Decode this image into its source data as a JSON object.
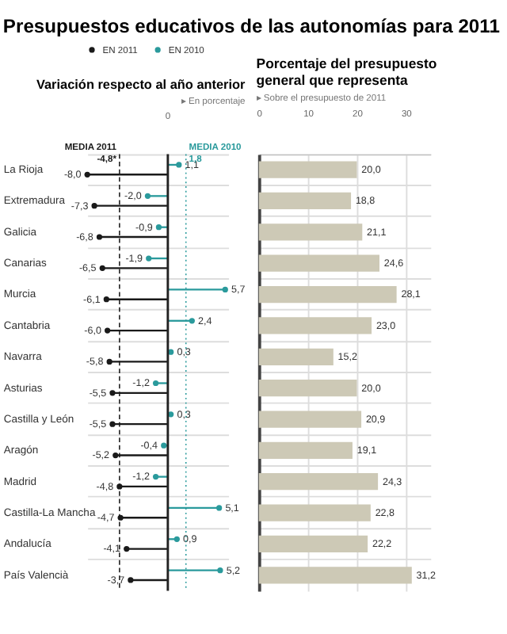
{
  "chart_data": [
    {
      "type": "lollipop",
      "orientation": "horizontal",
      "title": "Presupuestos educativos de las autonomías para 2011",
      "subtitle": "Variación  respecto al año anterior",
      "annotations": [
        "▸ En porcentaje",
        "0"
      ],
      "categories": [
        "La Rioja",
        "Extremadura",
        "Galicia",
        "Canarias",
        "Murcia",
        "Cantabria",
        "Navarra",
        "Asturias",
        "Castilla y León",
        "Aragón",
        "Madrid",
        "Castilla-La Mancha",
        "Andalucía",
        "País Valencià"
      ],
      "series": [
        {
          "name": "EN 2011",
          "color": "#1a1a1a",
          "values": [
            -8.0,
            -7.3,
            -6.8,
            -6.5,
            -6.1,
            -6.0,
            -5.8,
            -5.5,
            -5.5,
            -5.2,
            -4.8,
            -4.7,
            -4.1,
            -3.7
          ],
          "value_labels": [
            "-8,0",
            "-7,3",
            "-6,8",
            "-6,5",
            "-6,1",
            "-6,0",
            "-5,8",
            "-5,5",
            "-5,5",
            "-5,2",
            "-4,8",
            "-4,7",
            "-4,1",
            "-3,7"
          ]
        },
        {
          "name": "EN 2010",
          "color": "#2a9a9c",
          "values": [
            1.1,
            -2.0,
            -0.9,
            -1.9,
            5.7,
            2.4,
            0.3,
            -1.2,
            0.3,
            -0.4,
            -1.2,
            5.1,
            0.9,
            5.2
          ],
          "value_labels": [
            "1,1",
            "-2,0",
            "-0,9",
            "-1,9",
            "5,7",
            "2,4",
            "0,3",
            "-1,2",
            "0,3",
            "-0,4",
            "-1,2",
            "5,1",
            "0,9",
            "5,2"
          ]
        }
      ],
      "ref_lines": [
        {
          "axis": "x",
          "value": -4.8,
          "label": "MEDIA 2011\n-4,8*",
          "color": "#1a1a1a",
          "line_style": "dashed"
        },
        {
          "axis": "x",
          "value": 1.8,
          "label": "MEDIA 2010\n1,8",
          "color": "#2a9a9c",
          "line_style": "dotted"
        }
      ],
      "legend": "top",
      "marker": "circle",
      "grid": "y"
    },
    {
      "type": "bar",
      "orientation": "horizontal",
      "title": "Porcentaje del presupuesto general que representa",
      "subtitle": "▸ Sobre el presupuesto de 2011",
      "categories": [
        null,
        null,
        null,
        null,
        null,
        null,
        null,
        null,
        null,
        null,
        null,
        null,
        null,
        null
      ],
      "values": [
        20.0,
        18.8,
        21.1,
        24.6,
        28.1,
        23.0,
        15.2,
        20.0,
        20.9,
        19.1,
        24.3,
        22.8,
        22.2,
        31.2
      ],
      "value_labels": [
        "20,0",
        "18,8",
        "21,1",
        "24,6",
        "28,1",
        "23,0",
        "15,2",
        "20,0",
        "20,9",
        "19,1",
        "24,3",
        "22,8",
        "22,2",
        "31,2"
      ],
      "color": "#cdc9b6",
      "xlim": [
        0,
        35
      ],
      "xticks": [
        0,
        10,
        20,
        30
      ],
      "grid": true,
      "tick_labels": "x"
    }
  ]
}
